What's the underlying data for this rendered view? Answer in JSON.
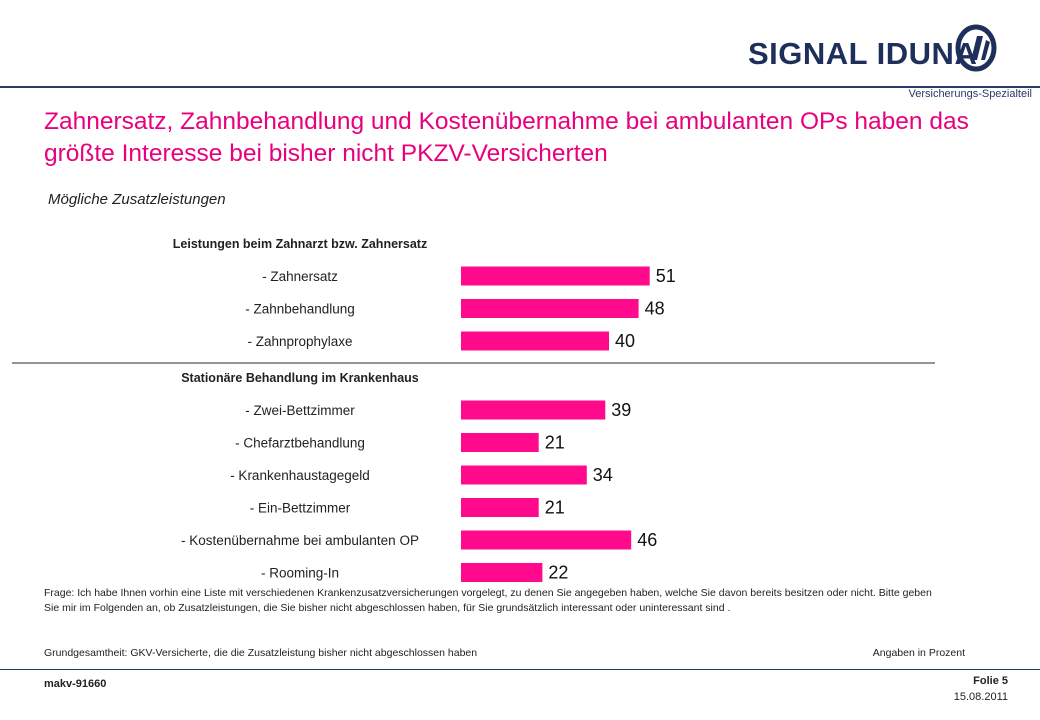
{
  "header": {
    "brand": "SIGNAL IDUNA",
    "tagline": "Versicherungs-Spezialteil"
  },
  "title": "Zahnersatz, Zahnbehandlung und Kostenübernahme bei ambulanten OPs haben das größte Interesse bei bisher nicht PKZV-Versicherten",
  "subtitle": "Mögliche Zusatzleistungen",
  "chart_data": {
    "type": "bar",
    "orientation": "horizontal",
    "groups": [
      {
        "label": "Leistungen beim Zahnarzt bzw. Zahnersatz",
        "categories": [
          "-  Zahnersatz",
          "-  Zahnbehandlung",
          "-  Zahnprophylaxe"
        ],
        "values": [
          51,
          48,
          40
        ]
      },
      {
        "label": "Stationäre Behandlung im Krankenhaus",
        "categories": [
          "-  Zwei-Bettzimmer",
          "-  Chefarztbehandlung",
          "-  Krankenhaustagegeld",
          "-  Ein-Bettzimmer",
          "-  Kostenübernahme bei ambulanten OP",
          "-  Rooming-In"
        ],
        "values": [
          39,
          21,
          34,
          21,
          46,
          22
        ]
      }
    ],
    "bar_color": "#ff0a8c",
    "xlim": [
      0,
      100
    ],
    "grid": false,
    "legend": "none"
  },
  "footnote": "Frage: Ich habe Ihnen vorhin eine Liste mit verschiedenen Krankenzusatzversicherungen  vorgelegt, zu denen Sie angegeben haben, welche Sie davon bereits besitzen oder nicht. Bitte geben Sie mir im Folgenden an, ob Zusatzleistungen, die Sie bisher nicht abgeschlossen haben, für Sie grundsätzlich interessant oder uninteressant sind .",
  "base": "Grundgesamtheit: GKV-Versicherte,  die die Zusatzleistung bisher nicht abgeschlossen haben",
  "unit_note": "Angaben in Prozent",
  "footer": {
    "job_id": "makv-91660",
    "slide": "Folie 5",
    "date": "15.08.2011"
  },
  "colors": {
    "accent": "#e8007d",
    "bar": "#ff0a8c",
    "brand": "#1f2f5c"
  }
}
